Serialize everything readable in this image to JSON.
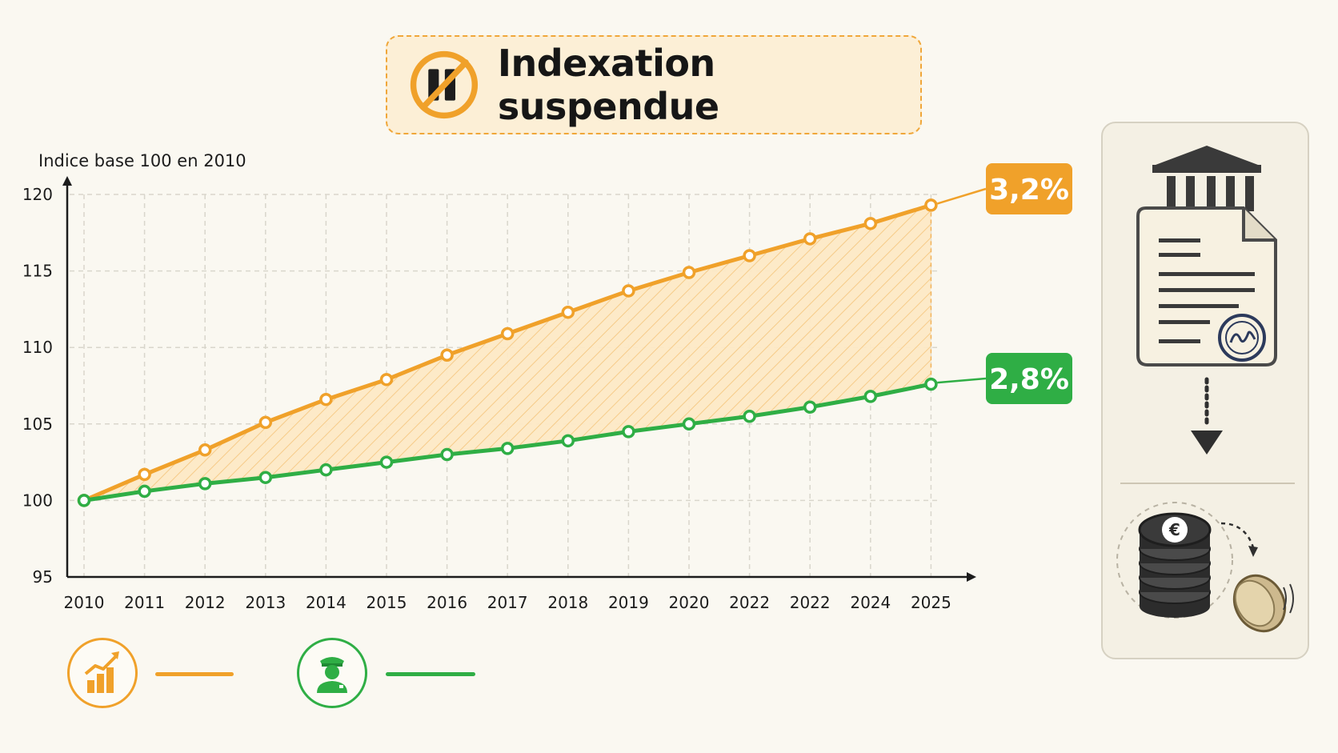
{
  "title": {
    "text": "Indexation suspendue",
    "icon": "pause-prohibited-icon",
    "accent": "#f0a12a"
  },
  "chart_data": {
    "type": "line",
    "title": "Indexation suspendue",
    "ylabel": "Indice base 100 en 2010",
    "xlabel": "",
    "categories": [
      "2010",
      "2011",
      "2012",
      "2013",
      "2014",
      "2015",
      "2016",
      "2017",
      "2018",
      "2019",
      "2020",
      "2022",
      "2022",
      "2024",
      "2025"
    ],
    "ylim": [
      95,
      120
    ],
    "yticks": [
      95,
      100,
      105,
      110,
      115,
      120
    ],
    "grid": true,
    "series": [
      {
        "key": "orange",
        "color": "#f0a12a",
        "values": [
          100,
          101.7,
          103.3,
          105.1,
          106.6,
          107.9,
          109.5,
          110.9,
          112.3,
          113.7,
          114.9,
          116.0,
          117.1,
          118.1,
          119.3
        ],
        "end_label": "3,2%"
      },
      {
        "key": "green",
        "color": "#2fae45",
        "values": [
          100,
          100.6,
          101.1,
          101.5,
          102.0,
          102.5,
          103.0,
          103.4,
          103.9,
          104.5,
          105.0,
          105.5,
          106.1,
          106.8,
          107.6
        ],
        "end_label": "2,8%"
      }
    ],
    "fill_between": true
  },
  "legend": [
    {
      "icon": "growth-chart-icon",
      "color": "#f0a12a"
    },
    {
      "icon": "pensioner-icon",
      "color": "#2fae45"
    }
  ],
  "side_panel": {
    "icons": [
      "bank-icon",
      "signed-document-icon",
      "down-arrow-icon",
      "euro-coins-stack-icon",
      "falling-coin-icon"
    ]
  }
}
